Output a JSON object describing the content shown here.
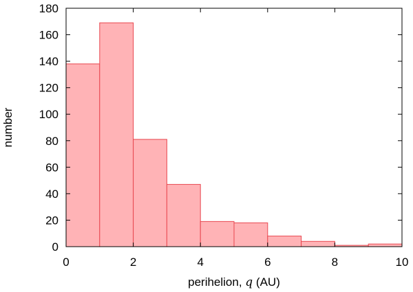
{
  "chart_data": {
    "type": "bar",
    "bins": [
      {
        "x0": 0,
        "x1": 1,
        "value": 138
      },
      {
        "x0": 1,
        "x1": 2,
        "value": 169
      },
      {
        "x0": 2,
        "x1": 3,
        "value": 81
      },
      {
        "x0": 3,
        "x1": 4,
        "value": 47
      },
      {
        "x0": 4,
        "x1": 5,
        "value": 19
      },
      {
        "x0": 5,
        "x1": 6,
        "value": 18
      },
      {
        "x0": 6,
        "x1": 7,
        "value": 8
      },
      {
        "x0": 7,
        "x1": 8,
        "value": 4
      },
      {
        "x0": 8,
        "x1": 9,
        "value": 1
      },
      {
        "x0": 9,
        "x1": 10,
        "value": 2
      }
    ],
    "xlabel_prefix": "perihelion, ",
    "xlabel_symbol": "q",
    "xlabel_suffix": " (AU)",
    "ylabel": "number",
    "xlim": [
      0,
      10
    ],
    "ylim": [
      0,
      180
    ],
    "xticks": [
      "0",
      "2",
      "4",
      "6",
      "8",
      "10"
    ],
    "yticks": [
      "0",
      "20",
      "40",
      "60",
      "80",
      "100",
      "120",
      "140",
      "160",
      "180"
    ],
    "grid": false,
    "colors": {
      "bar_fill": "#ffb3b6",
      "bar_stroke": "#e8474f",
      "axis": "#000000"
    }
  }
}
